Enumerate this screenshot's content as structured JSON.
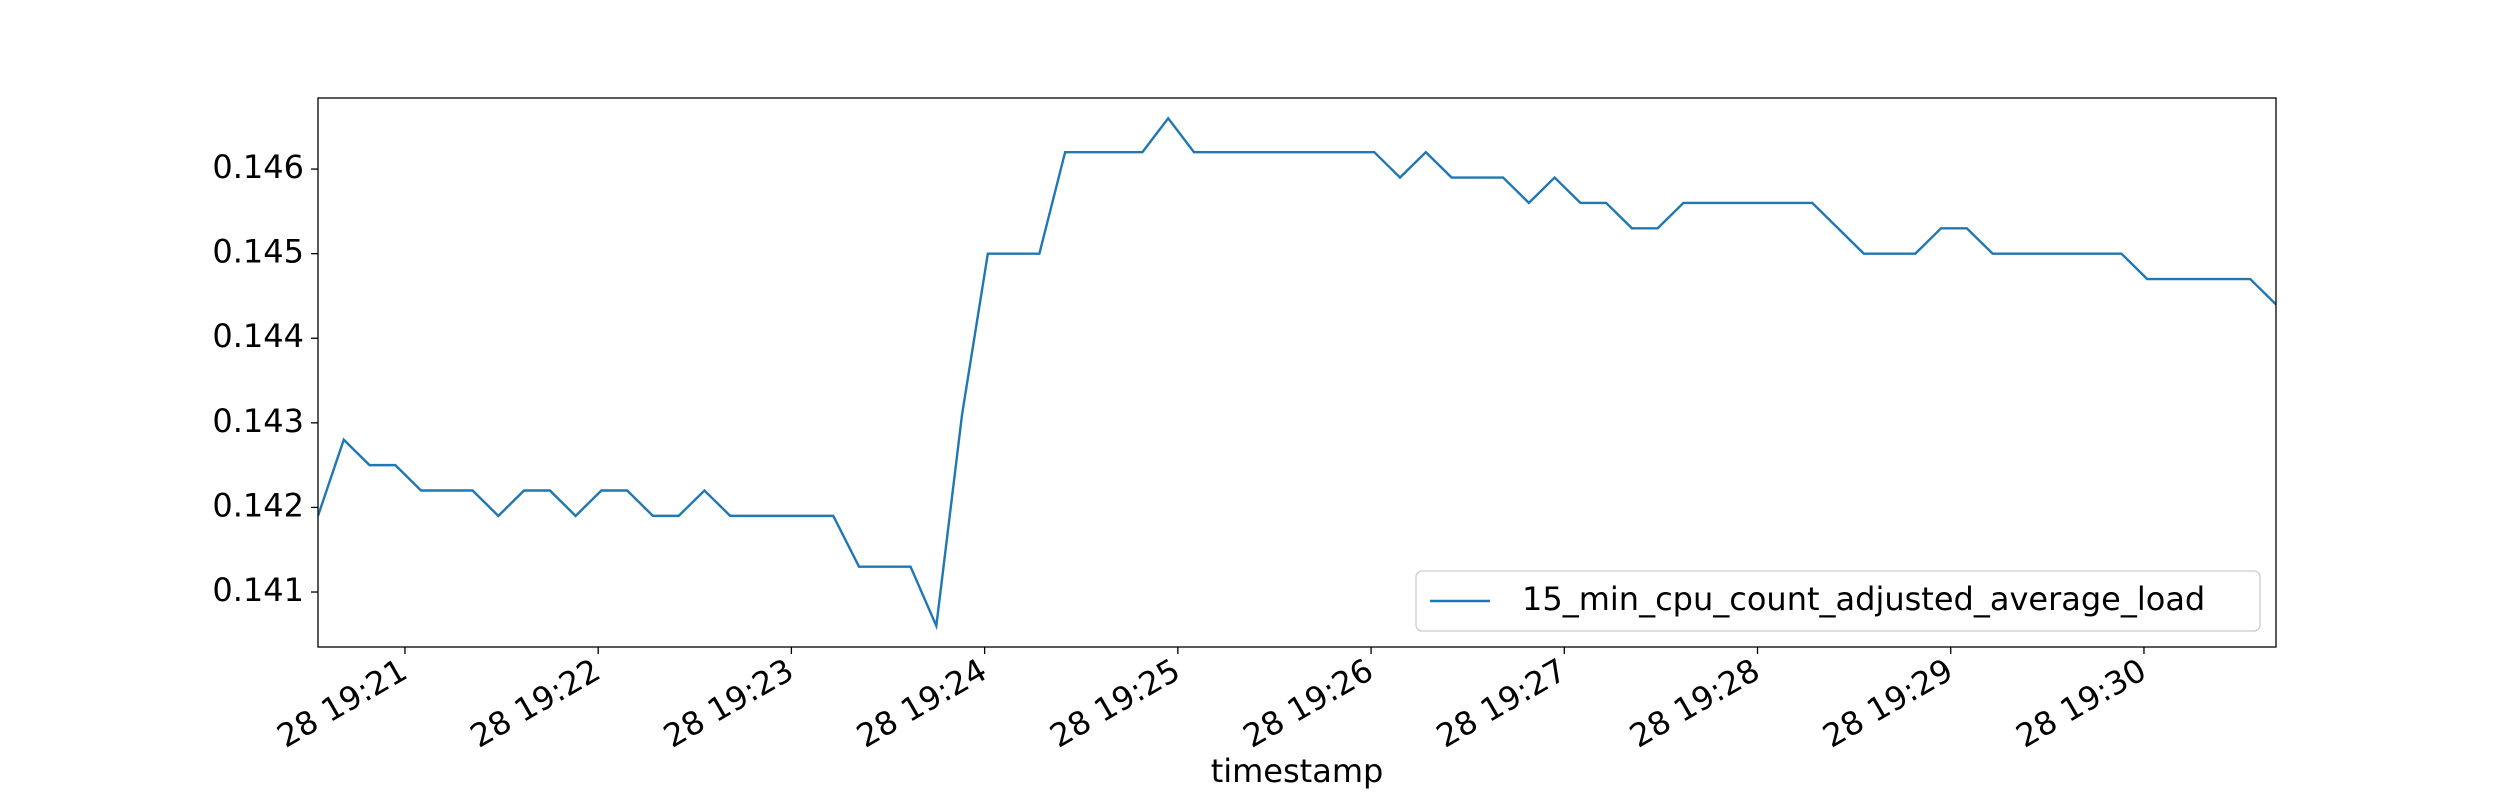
{
  "chart_data": {
    "type": "line",
    "xlabel": "timestamp",
    "x": [
      "28 19:20:33",
      "28 19:20:41",
      "28 19:20:49",
      "28 19:20:57",
      "28 19:21:05",
      "28 19:21:13",
      "28 19:21:21",
      "28 19:21:29",
      "28 19:21:37",
      "28 19:21:45",
      "28 19:21:53",
      "28 19:22:01",
      "28 19:22:09",
      "28 19:22:17",
      "28 19:22:25",
      "28 19:22:33",
      "28 19:22:41",
      "28 19:22:49",
      "28 19:22:57",
      "28 19:23:05",
      "28 19:23:13",
      "28 19:23:21",
      "28 19:23:29",
      "28 19:23:37",
      "28 19:23:45",
      "28 19:23:53",
      "28 19:24:01",
      "28 19:24:09",
      "28 19:24:17",
      "28 19:24:25",
      "28 19:24:33",
      "28 19:24:41",
      "28 19:24:49",
      "28 19:24:57",
      "28 19:25:05",
      "28 19:25:13",
      "28 19:25:21",
      "28 19:25:29",
      "28 19:25:37",
      "28 19:25:45",
      "28 19:25:53",
      "28 19:26:01",
      "28 19:26:09",
      "28 19:26:17",
      "28 19:26:25",
      "28 19:26:33",
      "28 19:26:41",
      "28 19:26:49",
      "28 19:26:57",
      "28 19:27:05",
      "28 19:27:13",
      "28 19:27:21",
      "28 19:27:29",
      "28 19:27:37",
      "28 19:27:45",
      "28 19:27:53",
      "28 19:28:01",
      "28 19:28:09",
      "28 19:28:17",
      "28 19:28:25",
      "28 19:28:33",
      "28 19:28:41",
      "28 19:28:49",
      "28 19:28:57",
      "28 19:29:05",
      "28 19:29:13",
      "28 19:29:21",
      "28 19:29:29",
      "28 19:29:37",
      "28 19:29:45",
      "28 19:29:53",
      "28 19:30:01",
      "28 19:30:09",
      "28 19:30:17",
      "28 19:30:25",
      "28 19:30:33",
      "28 19:30:41"
    ],
    "series": [
      {
        "name": "15_min_cpu_count_adjusted_average_load",
        "color": "#1f77b4",
        "values": [
          0.1419,
          0.1428,
          0.1425,
          0.1425,
          0.1422,
          0.1422,
          0.1422,
          0.1419,
          0.1422,
          0.1422,
          0.1419,
          0.1422,
          0.1422,
          0.1419,
          0.1419,
          0.1422,
          0.1419,
          0.1419,
          0.1419,
          0.1419,
          0.1419,
          0.1413,
          0.1413,
          0.1413,
          0.1406,
          0.1431,
          0.145,
          0.145,
          0.145,
          0.1462,
          0.1462,
          0.1462,
          0.1462,
          0.1466,
          0.1462,
          0.1462,
          0.1462,
          0.1462,
          0.1462,
          0.1462,
          0.1462,
          0.1462,
          0.1459,
          0.1462,
          0.1459,
          0.1459,
          0.1459,
          0.1456,
          0.1459,
          0.1456,
          0.1456,
          0.1453,
          0.1453,
          0.1456,
          0.1456,
          0.1456,
          0.1456,
          0.1456,
          0.1456,
          0.1453,
          0.145,
          0.145,
          0.145,
          0.1453,
          0.1453,
          0.145,
          0.145,
          0.145,
          0.145,
          0.145,
          0.145,
          0.1447,
          0.1447,
          0.1447,
          0.1447,
          0.1447,
          0.1444
        ]
      }
    ],
    "xlim": [
      "28 19:20:33",
      "28 19:30:41"
    ],
    "xticks": [
      {
        "value": "28 19:21:00",
        "label": "28 19:21"
      },
      {
        "value": "28 19:22:00",
        "label": "28 19:22"
      },
      {
        "value": "28 19:23:00",
        "label": "28 19:23"
      },
      {
        "value": "28 19:24:00",
        "label": "28 19:24"
      },
      {
        "value": "28 19:25:00",
        "label": "28 19:25"
      },
      {
        "value": "28 19:26:00",
        "label": "28 19:26"
      },
      {
        "value": "28 19:27:00",
        "label": "28 19:27"
      },
      {
        "value": "28 19:28:00",
        "label": "28 19:28"
      },
      {
        "value": "28 19:29:00",
        "label": "28 19:29"
      },
      {
        "value": "28 19:30:00",
        "label": "28 19:30"
      }
    ],
    "ylim": [
      0.14035,
      0.14684
    ],
    "yticks": [
      0.141,
      0.142,
      0.143,
      0.144,
      0.145,
      0.146
    ],
    "legend": "lower right"
  }
}
